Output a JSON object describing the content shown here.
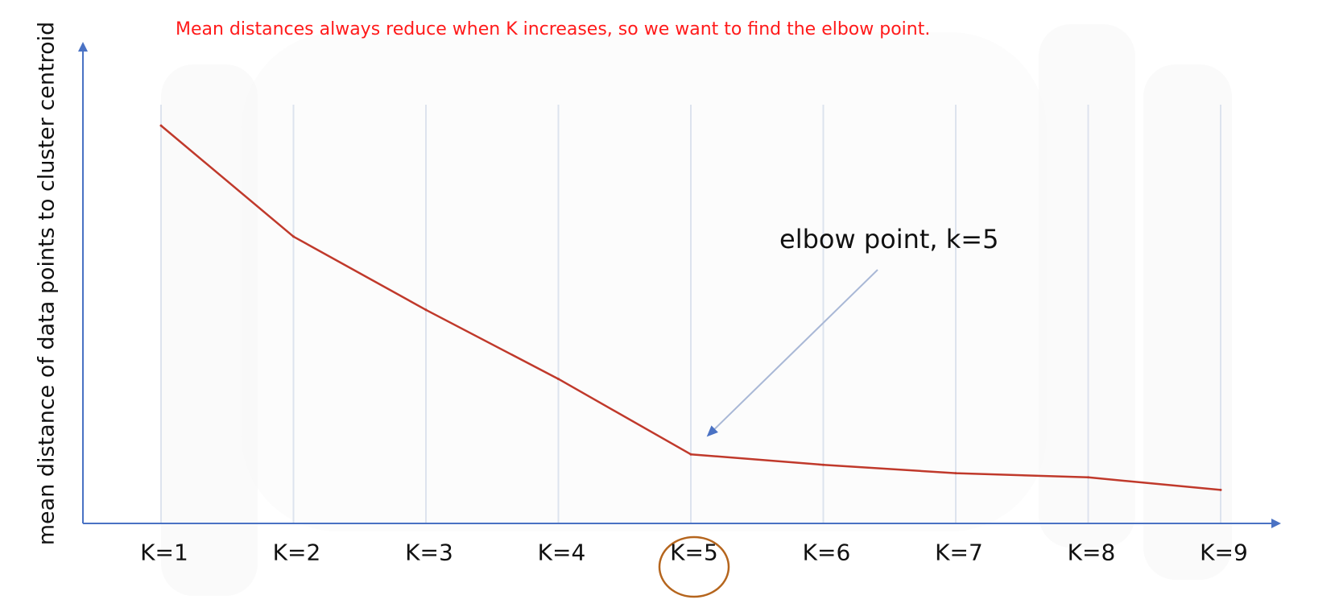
{
  "annotation_top": "Mean distances always reduce when K increases, so we want to find the elbow point.",
  "colors": {
    "line": "#c0392b",
    "axis": "#4a72c4",
    "grid": "#dde3ee",
    "annotation": "#ff1a1a",
    "highlight_circle": "#b5651d",
    "arrow": "#a9b8d6"
  },
  "chart_data": {
    "type": "line",
    "title": "",
    "xlabel": "",
    "ylabel": "mean distance of data points to cluster centroid",
    "categories": [
      "K=1",
      "K=2",
      "K=3",
      "K=4",
      "K=5",
      "K=6",
      "K=7",
      "K=8",
      "K=9"
    ],
    "series": [
      {
        "name": "mean distance",
        "values": [
          95,
          68.5,
          51,
          34.5,
          16.5,
          14,
          12,
          11,
          8
        ]
      }
    ],
    "ylim": [
      0,
      100
    ],
    "grid": true,
    "highlight_category": "K=5",
    "annotations": [
      {
        "text": "elbow point, k=5",
        "target_category": "K=5"
      }
    ]
  }
}
